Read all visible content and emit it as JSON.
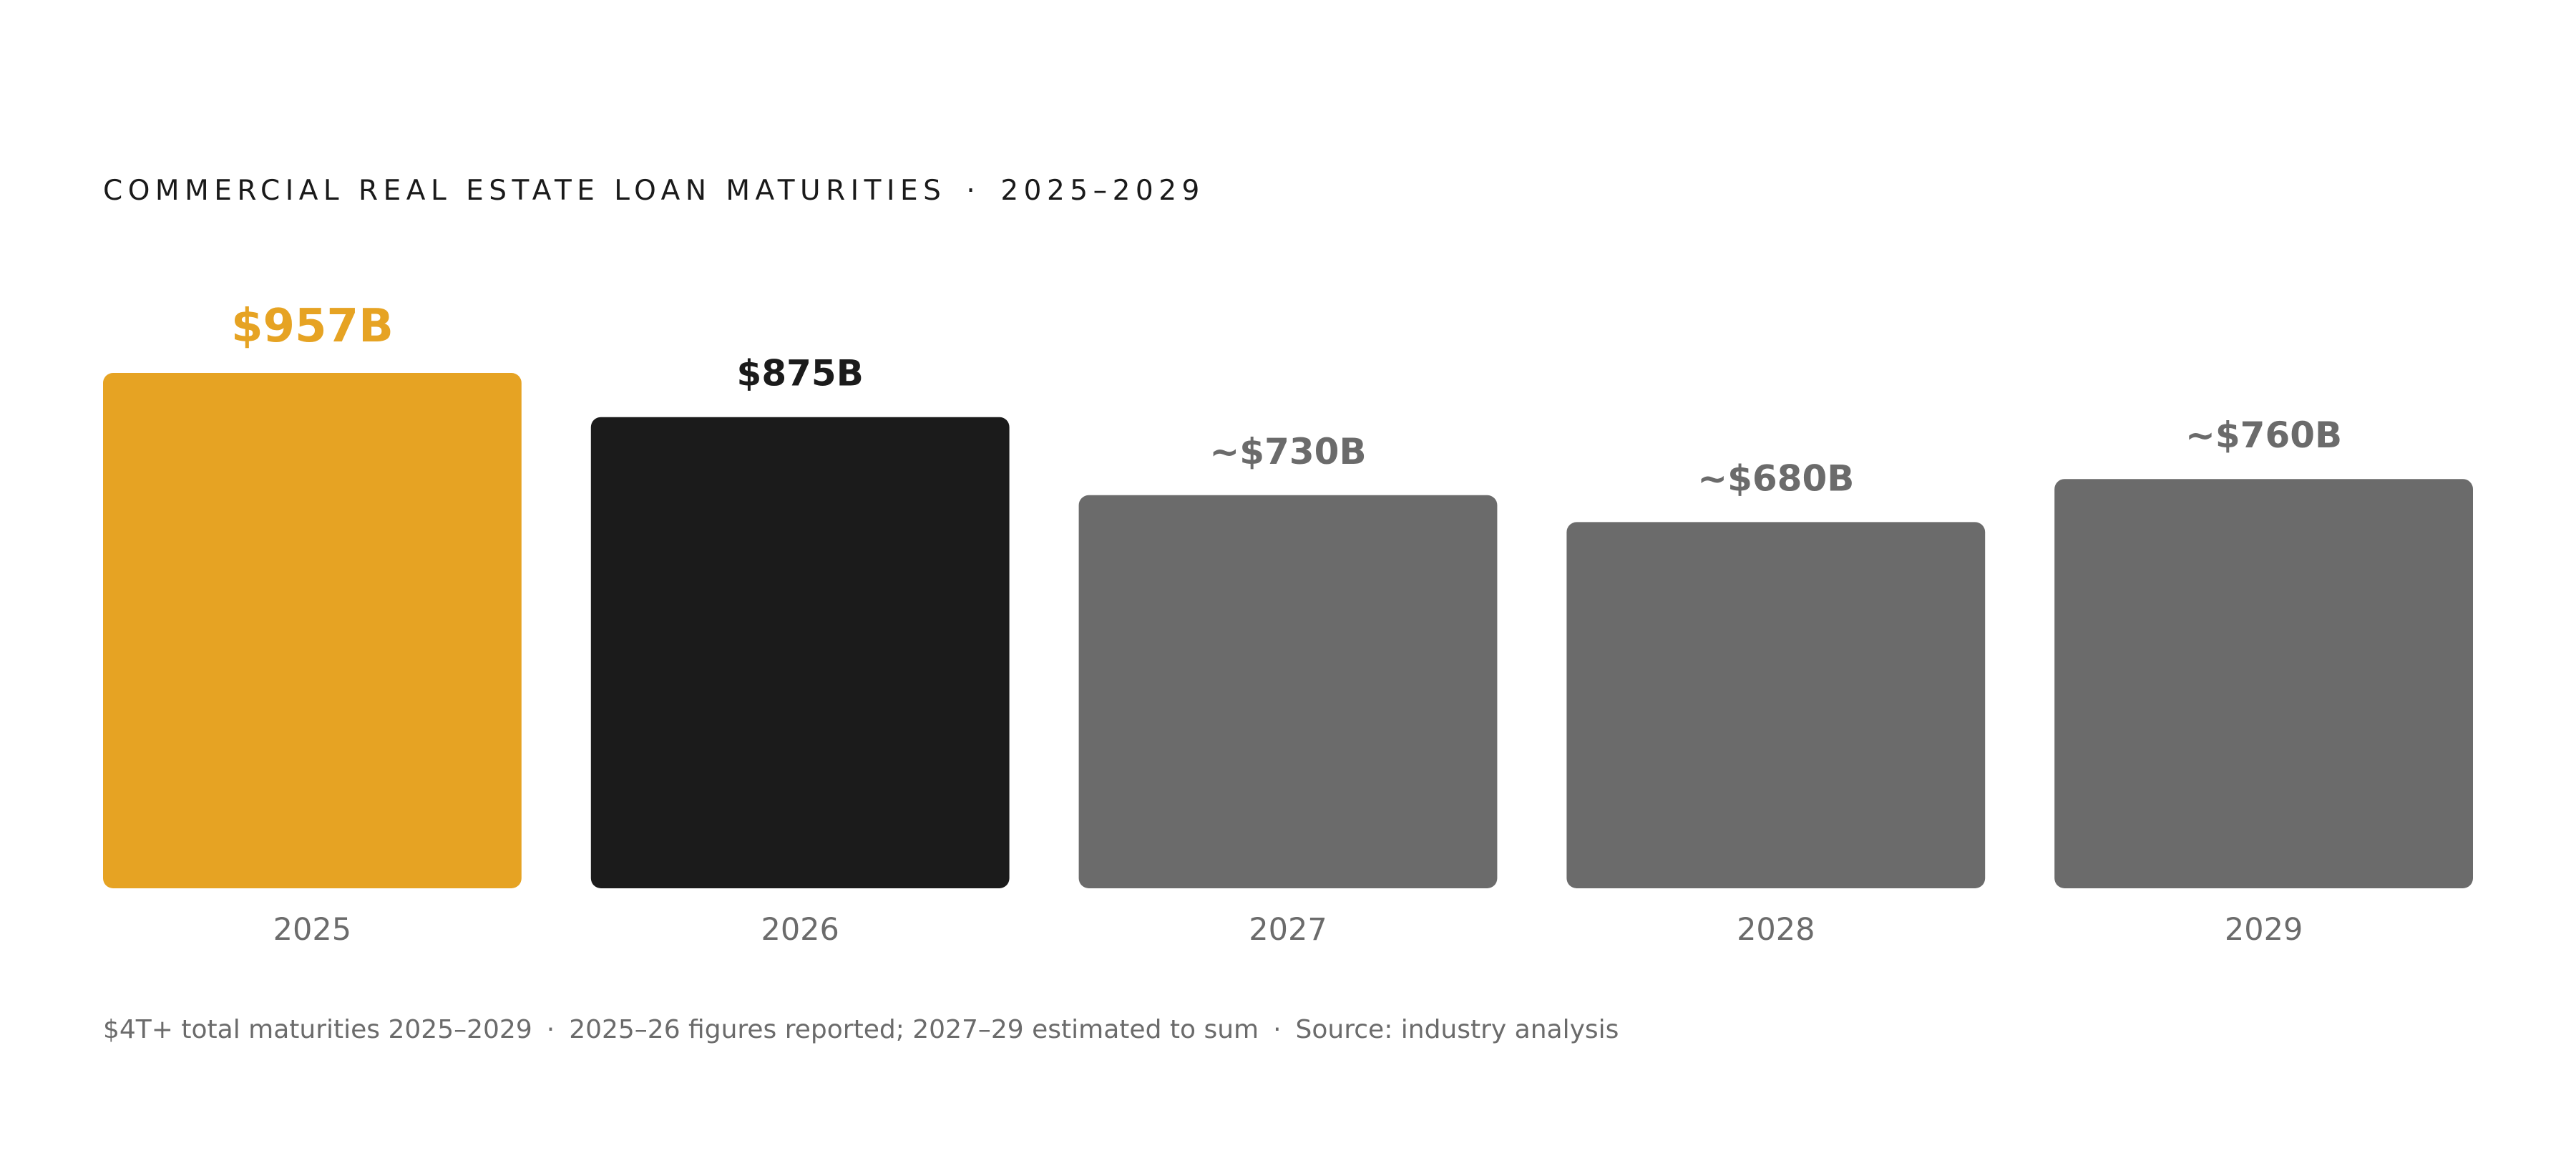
{
  "chart_data": {
    "type": "bar",
    "title": "COMMERCIAL REAL ESTATE LOAN MATURITIES",
    "subtitle": "2025–2029",
    "categories": [
      "2025",
      "2026",
      "2027",
      "2028",
      "2029"
    ],
    "values": [
      957,
      875,
      730,
      680,
      760
    ],
    "value_labels": [
      "$957B",
      "$875B",
      "~$730B",
      "~$680B",
      "~$760B"
    ],
    "colors": [
      "#E6A323",
      "#1B1B1B",
      "#6B6B6B",
      "#6B6B6B",
      "#6B6B6B"
    ],
    "label_colors": [
      "#E6A323",
      "#1B1B1B",
      "#6B6B6B",
      "#6B6B6B",
      "#6B6B6B"
    ],
    "ylim": [
      0,
      957
    ],
    "xlabel": "",
    "ylabel": "",
    "grid": false,
    "legend": "none"
  },
  "footnote": {
    "part1": "$4T+ total maturities 2025–2029",
    "part2": "2025–26 figures reported; 2027–29 estimated to sum",
    "part3": "Source: industry analysis",
    "separator": "·"
  },
  "title_separator": "·"
}
